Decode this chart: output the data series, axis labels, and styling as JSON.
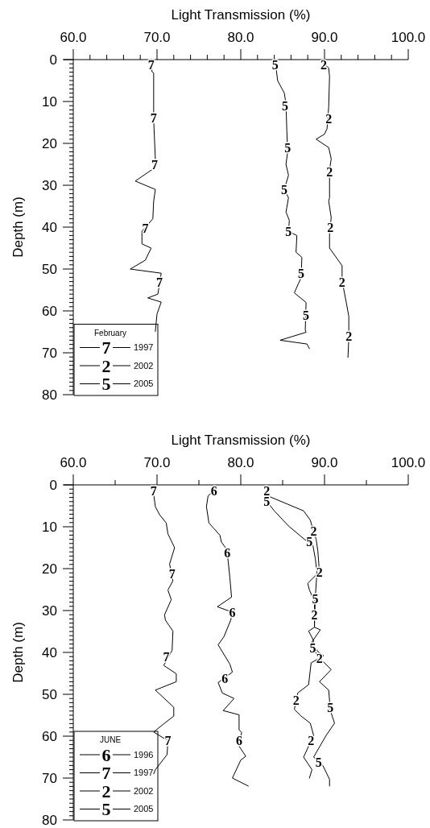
{
  "chart_data": [
    {
      "type": "line",
      "xlabel": "Light Transmission (%)",
      "ylabel": "Depth (m)",
      "legend_title": "February",
      "legend": "bottom left",
      "xlim": [
        60,
        100
      ],
      "ylim": [
        80,
        0
      ],
      "xticks": [
        {
          "value": 60,
          "label": "60.0"
        },
        {
          "value": 62,
          "label": null
        },
        {
          "value": 64,
          "label": null
        },
        {
          "value": 66,
          "label": null
        },
        {
          "value": 68,
          "label": null
        },
        {
          "value": 70,
          "label": "70.0"
        },
        {
          "value": 72,
          "label": null
        },
        {
          "value": 74,
          "label": null
        },
        {
          "value": 76,
          "label": null
        },
        {
          "value": 78,
          "label": null
        },
        {
          "value": 80,
          "label": "80.0"
        },
        {
          "value": 82,
          "label": null
        },
        {
          "value": 84,
          "label": null
        },
        {
          "value": 86,
          "label": null
        },
        {
          "value": 88,
          "label": null
        },
        {
          "value": 90,
          "label": "90.0"
        },
        {
          "value": 92,
          "label": null
        },
        {
          "value": 94,
          "label": null
        },
        {
          "value": 96,
          "label": null
        },
        {
          "value": 98,
          "label": null
        },
        {
          "value": 100,
          "label": "100.0"
        }
      ],
      "yticks": [
        0,
        {
          "value": 1,
          "label": null
        },
        {
          "value": 2,
          "label": null
        },
        {
          "value": 3,
          "label": null
        },
        {
          "value": 4,
          "label": null
        },
        {
          "value": 5,
          "label": null
        },
        {
          "value": 6,
          "label": null
        },
        {
          "value": 7,
          "label": null
        },
        {
          "value": 8,
          "label": null
        },
        {
          "value": 9,
          "label": null
        },
        10,
        {
          "value": 11,
          "label": null
        },
        {
          "value": 12,
          "label": null
        },
        {
          "value": 13,
          "label": null
        },
        {
          "value": 14,
          "label": null
        },
        {
          "value": 15,
          "label": null
        },
        {
          "value": 16,
          "label": null
        },
        {
          "value": 17,
          "label": null
        },
        {
          "value": 18,
          "label": null
        },
        {
          "value": 19,
          "label": null
        },
        20,
        {
          "value": 21,
          "label": null
        },
        {
          "value": 22,
          "label": null
        },
        {
          "value": 23,
          "label": null
        },
        {
          "value": 24,
          "label": null
        },
        {
          "value": 25,
          "label": null
        },
        {
          "value": 26,
          "label": null
        },
        {
          "value": 27,
          "label": null
        },
        {
          "value": 28,
          "label": null
        },
        {
          "value": 29,
          "label": null
        },
        30,
        {
          "value": 31,
          "label": null
        },
        {
          "value": 32,
          "label": null
        },
        {
          "value": 33,
          "label": null
        },
        {
          "value": 34,
          "label": null
        },
        {
          "value": 35,
          "label": null
        },
        {
          "value": 36,
          "label": null
        },
        {
          "value": 37,
          "label": null
        },
        {
          "value": 38,
          "label": null
        },
        {
          "value": 39,
          "label": null
        },
        40,
        {
          "value": 41,
          "label": null
        },
        {
          "value": 42,
          "label": null
        },
        {
          "value": 43,
          "label": null
        },
        {
          "value": 44,
          "label": null
        },
        {
          "value": 45,
          "label": null
        },
        {
          "value": 46,
          "label": null
        },
        {
          "value": 47,
          "label": null
        },
        {
          "value": 48,
          "label": null
        },
        {
          "value": 49,
          "label": null
        },
        50,
        {
          "value": 51,
          "label": null
        },
        {
          "value": 52,
          "label": null
        },
        {
          "value": 53,
          "label": null
        },
        {
          "value": 54,
          "label": null
        },
        {
          "value": 55,
          "label": null
        },
        {
          "value": 56,
          "label": null
        },
        {
          "value": 57,
          "label": null
        },
        {
          "value": 58,
          "label": null
        },
        {
          "value": 59,
          "label": null
        },
        60,
        {
          "value": 61,
          "label": null
        },
        {
          "value": 62,
          "label": null
        },
        {
          "value": 63,
          "label": null
        },
        {
          "value": 64,
          "label": null
        },
        {
          "value": 65,
          "label": null
        },
        {
          "value": 66,
          "label": null
        },
        {
          "value": 67,
          "label": null
        },
        {
          "value": 68,
          "label": null
        },
        {
          "value": 69,
          "label": null
        },
        70,
        {
          "value": 71,
          "label": null
        },
        {
          "value": 72,
          "label": null
        },
        {
          "value": 73,
          "label": null
        },
        {
          "value": 74,
          "label": null
        },
        {
          "value": 75,
          "label": null
        },
        {
          "value": 76,
          "label": null
        },
        {
          "value": 77,
          "label": null
        },
        {
          "value": 78,
          "label": null
        },
        {
          "value": 79,
          "label": null
        },
        80
      ],
      "series": [
        {
          "name": "1997",
          "color": "#000000",
          "x": [
            69.3,
            69.4,
            69.6,
            69.6,
            69.8,
            69.6,
            67.4,
            69.8,
            69.6,
            69.5,
            68.2,
            68.2,
            69.3,
            68.6,
            66.8,
            70.5,
            70.1,
            68.9,
            70.5,
            70.0,
            69.8
          ],
          "values": [
            0,
            2.9,
            3.2,
            14.5,
            23.7,
            26,
            29,
            31,
            33.8,
            38,
            41,
            44,
            45,
            47.9,
            50,
            51,
            56,
            56.9,
            57.9,
            60.7,
            64.9
          ]
        },
        {
          "name": "2002",
          "color": "#000000",
          "x": [
            89.8,
            90.5,
            90.6,
            90.5,
            90.3,
            90.0,
            89.0,
            90.5,
            90.8,
            90.6,
            90.6,
            90.5,
            90.8,
            90.6,
            90.6,
            92.1,
            92.1,
            92.6,
            92.9,
            92.9,
            92.8
          ],
          "values": [
            0.8,
            2,
            4,
            11.3,
            16.5,
            17.8,
            19,
            21,
            23.7,
            26.3,
            33,
            33.8,
            37.7,
            41.7,
            45,
            49.2,
            52.8,
            58,
            61.3,
            66.5,
            71.1
          ]
        },
        {
          "name": "2005",
          "color": "#000000",
          "x": [
            84.1,
            84.4,
            85.2,
            85.4,
            85.5,
            85.6,
            85.4,
            85.7,
            85.2,
            85.7,
            85.4,
            85.8,
            85.7,
            86.7,
            86.6,
            87.3,
            87.2,
            86.9,
            86.4,
            87.8,
            87.7,
            87.8,
            84.7,
            87.9,
            88.2
          ],
          "values": [
            0,
            5,
            8,
            10.6,
            17,
            22,
            25,
            27.6,
            31,
            33,
            36.4,
            38.4,
            41,
            42,
            46,
            47.2,
            52.1,
            53.4,
            55.7,
            58,
            64.6,
            65.1,
            67,
            67.9,
            69
          ]
        }
      ],
      "annotations": [
        {
          "text": "7",
          "x": 69.3,
          "y": 1.2
        },
        {
          "text": "7",
          "x": 69.6,
          "y": 14
        },
        {
          "text": "7",
          "x": 69.7,
          "y": 25
        },
        {
          "text": "7",
          "x": 68.6,
          "y": 40.2
        },
        {
          "text": "7",
          "x": 70.3,
          "y": 53.1
        },
        {
          "text": "2",
          "x": 89.9,
          "y": 1.2
        },
        {
          "text": "2",
          "x": 90.5,
          "y": 14.2
        },
        {
          "text": "2",
          "x": 90.6,
          "y": 26.9
        },
        {
          "text": "2",
          "x": 90.7,
          "y": 40
        },
        {
          "text": "2",
          "x": 92.1,
          "y": 53.1
        },
        {
          "text": "2",
          "x": 92.9,
          "y": 66
        },
        {
          "text": "5",
          "x": 84.1,
          "y": 1.2
        },
        {
          "text": "5",
          "x": 85.3,
          "y": 11.1
        },
        {
          "text": "5",
          "x": 85.6,
          "y": 21.1
        },
        {
          "text": "5",
          "x": 85.2,
          "y": 31
        },
        {
          "text": "5",
          "x": 85.7,
          "y": 41
        },
        {
          "text": "5",
          "x": 87.2,
          "y": 51
        },
        {
          "text": "5",
          "x": 87.8,
          "y": 61
        },
        "7",
        "2",
        "5"
      ]
    },
    {
      "type": "line",
      "xlabel": "Light Transmission (%)",
      "ylabel": "Depth (m)",
      "legend_title": "JUNE",
      "legend": "bottom left",
      "xlim": [
        60,
        100
      ],
      "ylim": [
        80,
        0
      ],
      "xticks": [
        {
          "value": 60,
          "label": "60.0"
        },
        {
          "value": 65,
          "label": null
        },
        {
          "value": 70,
          "label": "70.0"
        },
        {
          "value": 75,
          "label": null
        },
        {
          "value": 80,
          "label": "80.0"
        },
        {
          "value": 85,
          "label": null
        },
        {
          "value": 90,
          "label": "90.0"
        },
        {
          "value": 95,
          "label": null
        },
        {
          "value": 100,
          "label": "100.0"
        }
      ],
      "yticks": [
        0,
        {
          "value": 1,
          "label": null
        },
        {
          "value": 2,
          "label": null
        },
        {
          "value": 3,
          "label": null
        },
        {
          "value": 4,
          "label": null
        },
        {
          "value": 5,
          "label": null
        },
        {
          "value": 6,
          "label": null
        },
        {
          "value": 7,
          "label": null
        },
        {
          "value": 8,
          "label": null
        },
        {
          "value": 9,
          "label": null
        },
        10,
        {
          "value": 11,
          "label": null
        },
        {
          "value": 12,
          "label": null
        },
        {
          "value": 13,
          "label": null
        },
        {
          "value": 14,
          "label": null
        },
        {
          "value": 15,
          "label": null
        },
        {
          "value": 16,
          "label": null
        },
        {
          "value": 17,
          "label": null
        },
        {
          "value": 18,
          "label": null
        },
        {
          "value": 19,
          "label": null
        },
        20,
        {
          "value": 21,
          "label": null
        },
        {
          "value": 22,
          "label": null
        },
        {
          "value": 23,
          "label": null
        },
        {
          "value": 24,
          "label": null
        },
        {
          "value": 25,
          "label": null
        },
        {
          "value": 26,
          "label": null
        },
        {
          "value": 27,
          "label": null
        },
        {
          "value": 28,
          "label": null
        },
        {
          "value": 29,
          "label": null
        },
        30,
        {
          "value": 31,
          "label": null
        },
        {
          "value": 32,
          "label": null
        },
        {
          "value": 33,
          "label": null
        },
        {
          "value": 34,
          "label": null
        },
        {
          "value": 35,
          "label": null
        },
        {
          "value": 36,
          "label": null
        },
        {
          "value": 37,
          "label": null
        },
        {
          "value": 38,
          "label": null
        },
        {
          "value": 39,
          "label": null
        },
        40,
        {
          "value": 41,
          "label": null
        },
        {
          "value": 42,
          "label": null
        },
        {
          "value": 43,
          "label": null
        },
        {
          "value": 44,
          "label": null
        },
        {
          "value": 45,
          "label": null
        },
        {
          "value": 46,
          "label": null
        },
        {
          "value": 47,
          "label": null
        },
        {
          "value": 48,
          "label": null
        },
        {
          "value": 49,
          "label": null
        },
        50,
        {
          "value": 51,
          "label": null
        },
        {
          "value": 52,
          "label": null
        },
        {
          "value": 53,
          "label": null
        },
        {
          "value": 54,
          "label": null
        },
        {
          "value": 55,
          "label": null
        },
        {
          "value": 56,
          "label": null
        },
        {
          "value": 57,
          "label": null
        },
        {
          "value": 58,
          "label": null
        },
        {
          "value": 59,
          "label": null
        },
        60,
        {
          "value": 61,
          "label": null
        },
        {
          "value": 62,
          "label": null
        },
        {
          "value": 63,
          "label": null
        },
        {
          "value": 64,
          "label": null
        },
        {
          "value": 65,
          "label": null
        },
        {
          "value": 66,
          "label": null
        },
        {
          "value": 67,
          "label": null
        },
        {
          "value": 68,
          "label": null
        },
        {
          "value": 69,
          "label": null
        },
        70,
        {
          "value": 71,
          "label": null
        },
        {
          "value": 72,
          "label": null
        },
        {
          "value": 73,
          "label": null
        },
        {
          "value": 74,
          "label": null
        },
        {
          "value": 75,
          "label": null
        },
        {
          "value": 76,
          "label": null
        },
        {
          "value": 77,
          "label": null
        },
        {
          "value": 78,
          "label": null
        },
        {
          "value": 79,
          "label": null
        },
        80
      ],
      "series": [
        {
          "name": "1996",
          "color": "#000000",
          "x": [
            76.8,
            76.1,
            75.9,
            76.2,
            77.5,
            77.7,
            78.3,
            78.5,
            78.7,
            78.9,
            77.2,
            79.0,
            78.8,
            78.0,
            77.3,
            78.7,
            79.0,
            77.3,
            77.8,
            79.2,
            77.9,
            79.8,
            79.8,
            80.1,
            79.8,
            80.6,
            80.0,
            79.0,
            80.9
          ],
          "values": [
            1.4,
            2.6,
            5.2,
            9.1,
            12,
            13.7,
            15.3,
            18.3,
            22.2,
            26.8,
            29.1,
            30.4,
            32.3,
            36.2,
            38.2,
            42.8,
            44.7,
            47.2,
            49.7,
            51,
            53.9,
            54.9,
            58.5,
            59.1,
            62.4,
            64.8,
            65.7,
            70,
            71.9
          ]
        },
        {
          "name": "1997",
          "color": "#000000",
          "x": [
            69.6,
            69.6,
            69.8,
            70.3,
            71.1,
            71.3,
            72.1,
            71.5,
            71.9,
            71.3,
            71.7,
            70.9,
            71.0,
            71.9,
            71.8,
            70.8,
            72.3,
            72.3,
            69.8,
            72.0,
            72.0,
            70.9,
            69.6,
            71.3,
            71.2,
            69.8,
            69.6
          ],
          "values": [
            0,
            2.2,
            5.2,
            7.1,
            9.1,
            11.7,
            15,
            18.9,
            22.9,
            25.1,
            27.4,
            31,
            32.3,
            34.9,
            39.5,
            43.1,
            45.1,
            47,
            49,
            53.1,
            55.2,
            56.9,
            59,
            61.1,
            64.4,
            68,
            69
          ]
        },
        {
          "name": "2002",
          "color": "#000000",
          "x": [
            83.1,
            83.2,
            87.5,
            88.3,
            88.7,
            89.0,
            89.2,
            89.4,
            89.0,
            88.0,
            88.2,
            88.8,
            88.8,
            89.5,
            88.5,
            89.2,
            89.9,
            88.4,
            88.1,
            86.8,
            86.4,
            87.2,
            88.3,
            88.7,
            87.5,
            88.5,
            88.2
          ],
          "values": [
            1.4,
            2.6,
            6.2,
            8.4,
            11.1,
            13,
            15.7,
            20.9,
            21.5,
            23.5,
            25.1,
            27.8,
            34,
            34.6,
            37.5,
            39.8,
            40.8,
            42.5,
            47.7,
            49.7,
            53.6,
            55.2,
            56.9,
            59.8,
            65,
            68,
            70
          ]
        },
        {
          "name": "2005",
          "color": "#000000",
          "x": [
            83.0,
            83.1,
            84.0,
            85.7,
            87.6,
            88.6,
            88.9,
            89.1,
            88.9,
            88.8,
            88.1,
            88.7,
            88.5,
            89.5,
            90.8,
            89.4,
            90.5,
            90.7,
            91.2,
            90.2,
            88.7,
            89.8,
            90.6,
            90.6
          ],
          "values": [
            1.4,
            3.9,
            6.2,
            9.8,
            13,
            14.3,
            17.6,
            20.9,
            26.8,
            34,
            34.9,
            37.2,
            38.8,
            41.5,
            44.1,
            47,
            49,
            53.9,
            56.9,
            59.8,
            65,
            67,
            70.3,
            71.9
          ]
        }
      ],
      "annotations": [
        {
          "text": "6",
          "x": 76.8,
          "y": 1.4
        },
        {
          "text": "6",
          "x": 78.4,
          "y": 16.3
        },
        {
          "text": "6",
          "x": 79.0,
          "y": 30.4
        },
        {
          "text": "6",
          "x": 78.1,
          "y": 46.2
        },
        {
          "text": "6",
          "x": 79.8,
          "y": 61.1
        },
        {
          "text": "7",
          "x": 69.6,
          "y": 1.4
        },
        {
          "text": "7",
          "x": 71.8,
          "y": 21.2
        },
        {
          "text": "7",
          "x": 71.1,
          "y": 41
        },
        {
          "text": "7",
          "x": 71.3,
          "y": 61.1
        },
        {
          "text": "2",
          "x": 83.1,
          "y": 1.4
        },
        {
          "text": "2",
          "x": 88.7,
          "y": 11.1
        },
        {
          "text": "2",
          "x": 89.4,
          "y": 20.9
        },
        {
          "text": "2",
          "x": 88.8,
          "y": 31
        },
        {
          "text": "2",
          "x": 89.4,
          "y": 41.5
        },
        {
          "text": "2",
          "x": 86.6,
          "y": 51.4
        },
        {
          "text": "2",
          "x": 88.4,
          "y": 61.1
        },
        {
          "text": "5",
          "x": 83.1,
          "y": 3.9
        },
        {
          "text": "5",
          "x": 88.2,
          "y": 13.6
        },
        {
          "text": "5",
          "x": 88.9,
          "y": 27.1
        },
        {
          "text": "5",
          "x": 88.6,
          "y": 39
        },
        {
          "text": "5",
          "x": 90.7,
          "y": 53.1
        },
        {
          "text": "5",
          "x": 89.3,
          "y": 66.2
        },
        "6",
        "7",
        "2",
        "5"
      ]
    }
  ]
}
